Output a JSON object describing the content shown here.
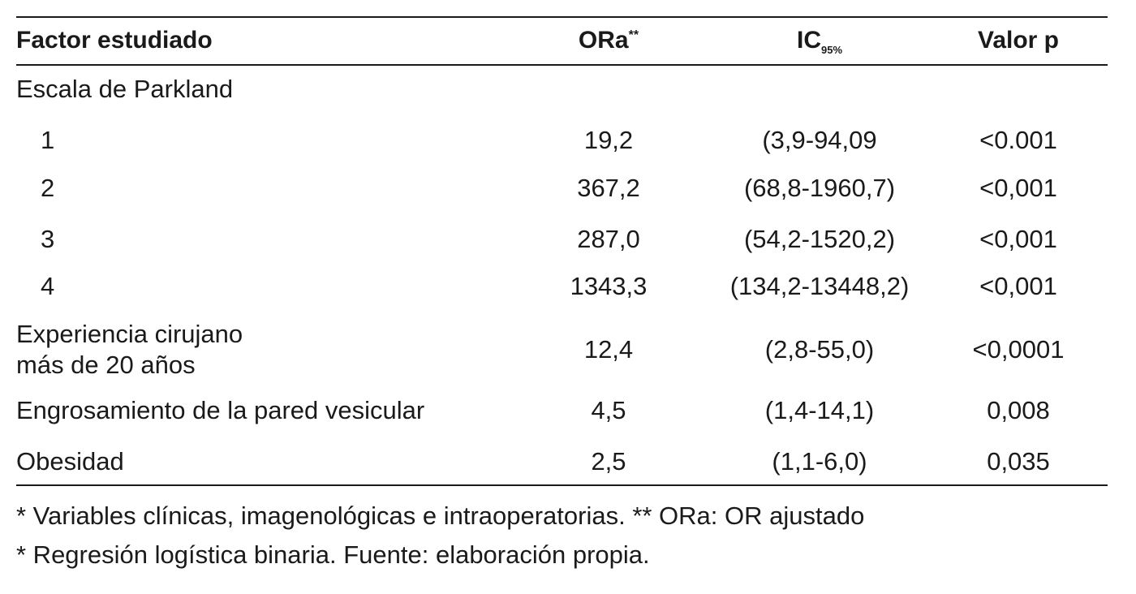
{
  "table": {
    "headers": {
      "factor": "Factor estudiado",
      "ora": "ORa",
      "ora_sup": "**",
      "ic": "IC",
      "ic_sub": "95%",
      "p": "Valor p"
    },
    "section_label": "Escala de Parkland",
    "parkland_rows": [
      {
        "factor": "1",
        "ora": "19,2",
        "ic": "(3,9-94,09",
        "p": "<0.001"
      },
      {
        "factor": "2",
        "ora": "367,2",
        "ic": "(68,8-1960,7)",
        "p": "<0,001"
      },
      {
        "factor": "3",
        "ora": "287,0",
        "ic": "(54,2-1520,2)",
        "p": "<0,001"
      },
      {
        "factor": "4",
        "ora": "1343,3",
        "ic": "(134,2-13448,2)",
        "p": "<0,001"
      }
    ],
    "other_rows": [
      {
        "factor_line1": "Experiencia cirujano",
        "factor_line2": "más de 20 años",
        "ora": "12,4",
        "ic": "(2,8-55,0)",
        "p": "<0,0001"
      },
      {
        "factor": "Engrosamiento de la pared vesicular",
        "ora": "4,5",
        "ic": "(1,4-14,1)",
        "p": "0,008"
      },
      {
        "factor": "Obesidad",
        "ora": "2,5",
        "ic": "(1,1-6,0)",
        "p": "0,035"
      }
    ]
  },
  "notes": {
    "line1": "* Variables clínicas, imagenológicas e intraoperatorias. ** ORa: OR ajustado",
    "line2": "* Regresión logística binaria. Fuente: elaboración propia."
  }
}
